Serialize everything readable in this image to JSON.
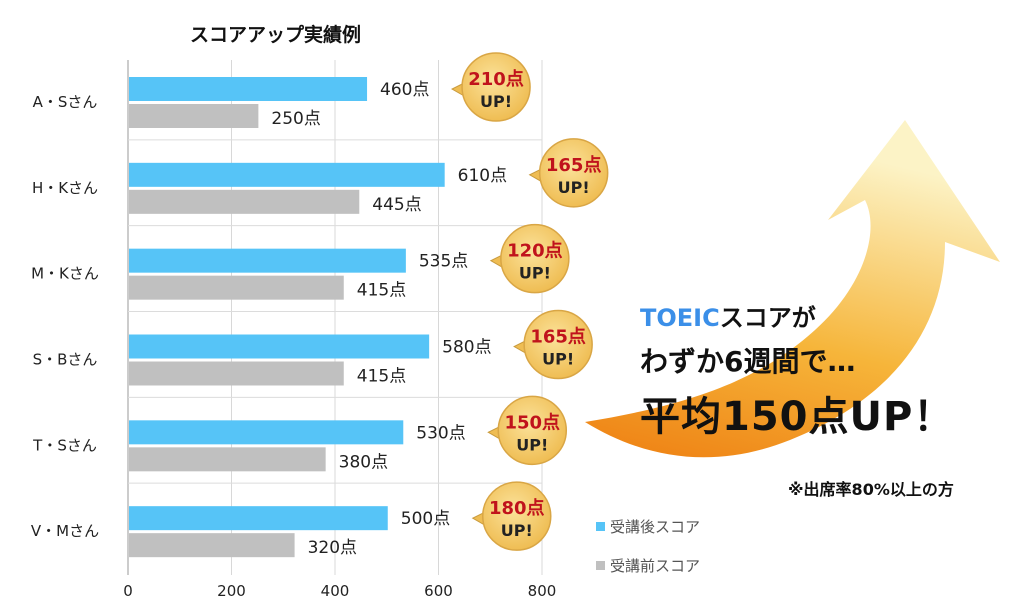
{
  "chart_data": {
    "type": "bar",
    "title": "スコアアップ実績例",
    "categories": [
      "A・Sさん",
      "H・Kさん",
      "M・Kさん",
      "S・Bさん",
      "T・Sさん",
      "V・Mさん"
    ],
    "series": [
      {
        "name": "受講後スコア",
        "color": "#56c4f7",
        "values": [
          460,
          610,
          535,
          580,
          530,
          500
        ],
        "labels": [
          "460点",
          "610点",
          "535点",
          "580点",
          "530点",
          "500点"
        ]
      },
      {
        "name": "受講前スコア",
        "color": "#c0c0c0",
        "values": [
          250,
          445,
          415,
          415,
          380,
          320
        ],
        "labels": [
          "250点",
          "445点",
          "415点",
          "415点",
          "380点",
          "320点"
        ]
      }
    ],
    "badges": [
      {
        "gain": "210点",
        "up": "UP!"
      },
      {
        "gain": "165点",
        "up": "UP!"
      },
      {
        "gain": "120点",
        "up": "UP!"
      },
      {
        "gain": "165点",
        "up": "UP!"
      },
      {
        "gain": "150点",
        "up": "UP!"
      },
      {
        "gain": "180点",
        "up": "UP!"
      }
    ],
    "xlim": [
      0,
      800
    ],
    "xticks": [
      "0",
      "200",
      "400",
      "600",
      "800"
    ],
    "grid": true,
    "legend_position": "bottom-right"
  },
  "promo": {
    "line1_highlight": "TOEIC",
    "line1_rest": "スコアが",
    "line2": "わずか6週間で…",
    "line3": "平均150点UP！",
    "footnote": "※出席率80%以上の方"
  },
  "colors": {
    "after": "#56c4f7",
    "before": "#c0c0c0",
    "badge_fill": "#f3c969",
    "badge_number": "#c0131c",
    "arrow_top": "#fbefb8",
    "arrow_bottom": "#f08a17",
    "highlight": "#3b8fe8"
  }
}
